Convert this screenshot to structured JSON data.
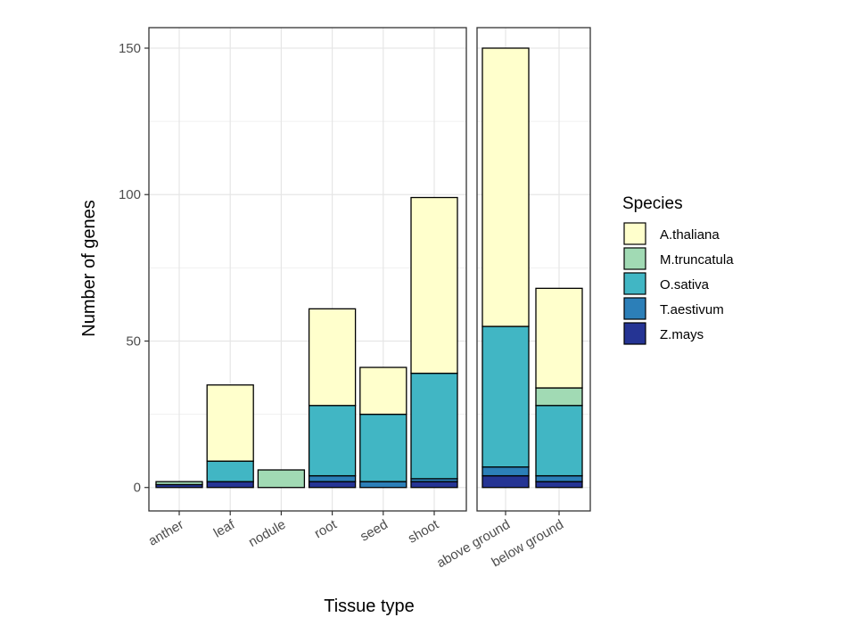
{
  "chart_data": {
    "type": "bar",
    "stacked": true,
    "xlabel": "Tissue type",
    "ylabel": "Number of genes",
    "ylim": [
      -8,
      157
    ],
    "yticks": [
      0,
      50,
      100,
      150
    ],
    "grid": true,
    "legend": {
      "title": "Species",
      "placement": "right"
    },
    "species": [
      "Z.mays",
      "T.aestivum",
      "O.sativa",
      "M.truncatula",
      "A.thaliana"
    ],
    "legend_order": [
      "A.thaliana",
      "M.truncatula",
      "O.sativa",
      "T.aestivum",
      "Z.mays"
    ],
    "colors": {
      "A.thaliana": "#ffffcc",
      "M.truncatula": "#a1dab4",
      "O.sativa": "#41b6c4",
      "T.aestivum": "#2c7fb8",
      "Z.mays": "#253494"
    },
    "panels": [
      {
        "categories": [
          "anther",
          "leaf",
          "nodule",
          "root",
          "seed",
          "shoot"
        ],
        "series": [
          {
            "name": "Z.mays",
            "values": [
              1,
              2,
              0,
              2,
              0,
              2
            ]
          },
          {
            "name": "T.aestivum",
            "values": [
              0,
              0,
              0,
              2,
              2,
              1
            ]
          },
          {
            "name": "O.sativa",
            "values": [
              0,
              7,
              0,
              24,
              23,
              36
            ]
          },
          {
            "name": "M.truncatula",
            "values": [
              1,
              0,
              6,
              0,
              0,
              0
            ]
          },
          {
            "name": "A.thaliana",
            "values": [
              0,
              26,
              0,
              33,
              16,
              60
            ]
          }
        ]
      },
      {
        "categories": [
          "above ground",
          "below ground"
        ],
        "series": [
          {
            "name": "Z.mays",
            "values": [
              4,
              2
            ]
          },
          {
            "name": "T.aestivum",
            "values": [
              3,
              2
            ]
          },
          {
            "name": "O.sativa",
            "values": [
              48,
              24
            ]
          },
          {
            "name": "M.truncatula",
            "values": [
              0,
              6
            ]
          },
          {
            "name": "A.thaliana",
            "values": [
              95,
              34
            ]
          }
        ]
      }
    ]
  }
}
